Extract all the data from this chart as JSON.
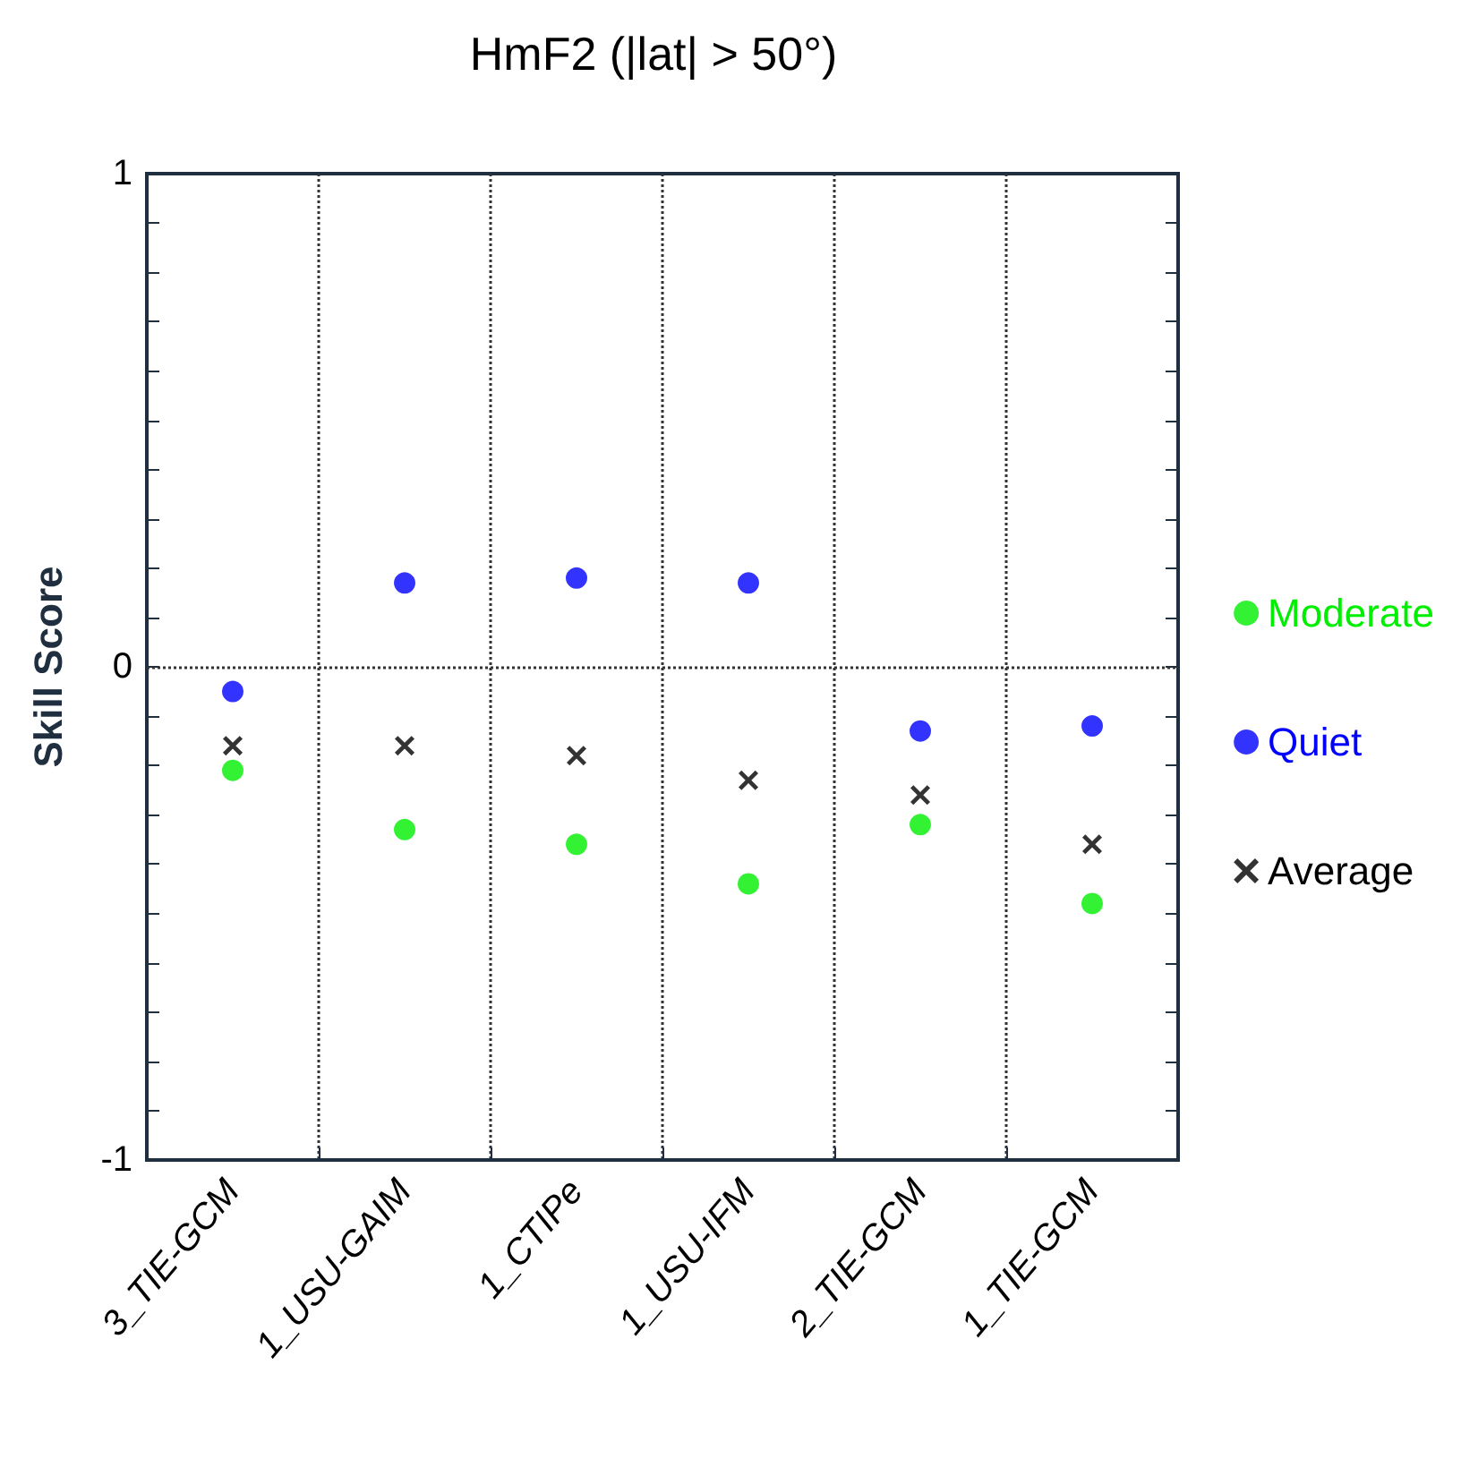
{
  "chart_data": {
    "type": "scatter",
    "title": "HmF2 (|lat| > 50°)",
    "ylabel": "Skill Score",
    "categories": [
      "3_TIE-GCM",
      "1_USU-GAIM",
      "1_CTIPe",
      "1_USU-IFM",
      "2_TIE-GCM",
      "1_TIE-GCM"
    ],
    "series": [
      {
        "name": "Moderate",
        "color": "#00ee00",
        "marker": "circle",
        "values": [
          -0.21,
          -0.33,
          -0.36,
          -0.44,
          -0.32,
          -0.48
        ]
      },
      {
        "name": "Quiet",
        "color": "#0000ff",
        "marker": "circle",
        "values": [
          -0.05,
          0.17,
          0.18,
          0.17,
          -0.13,
          -0.12
        ]
      },
      {
        "name": "Average",
        "color": "#000000",
        "marker": "cross",
        "values": [
          -0.16,
          -0.16,
          -0.18,
          -0.23,
          -0.26,
          -0.36
        ]
      }
    ],
    "ylim": [
      -1,
      1
    ],
    "yticks": [
      -1,
      {
        "value": -0.9,
        "label": null
      },
      {
        "value": -0.8,
        "label": null
      },
      {
        "value": -0.7,
        "label": null
      },
      {
        "value": -0.6,
        "label": null
      },
      {
        "value": -0.5,
        "label": null
      },
      {
        "value": -0.4,
        "label": null
      },
      {
        "value": -0.3,
        "label": null
      },
      {
        "value": -0.2,
        "label": null
      },
      {
        "value": -0.1,
        "label": null
      },
      0,
      {
        "value": 0.1,
        "label": null
      },
      {
        "value": 0.2,
        "label": null
      },
      {
        "value": 0.3,
        "label": null
      },
      {
        "value": 0.4,
        "label": null
      },
      {
        "value": 0.5,
        "label": null
      },
      {
        "value": 0.6,
        "label": null
      },
      {
        "value": 0.7,
        "label": null
      },
      {
        "value": 0.8,
        "label": null
      },
      {
        "value": 0.9,
        "label": null
      },
      1
    ],
    "ref_lines": [
      {
        "axis": "y",
        "value": 0,
        "line_style": "dotted",
        "color": "#333333"
      }
    ],
    "grid": "x",
    "legend": "right"
  }
}
